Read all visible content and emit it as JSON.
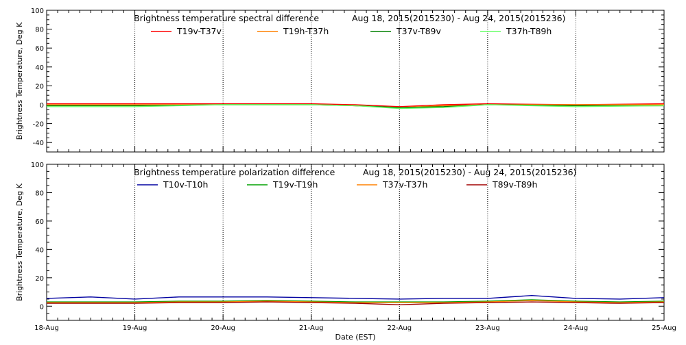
{
  "chart_data": [
    {
      "type": "line",
      "title": "Brightness temperature spectral difference",
      "date_range": "Aug 18, 2015(2015230) - Aug 24, 2015(2015236)",
      "ylabel": "Brightness Temperature, Deg K",
      "xlabel": "",
      "ylim": [
        -50,
        100
      ],
      "yticks": [
        -40,
        -20,
        0,
        20,
        40,
        60,
        80,
        100
      ],
      "xlim": [
        "2015-08-18",
        "2015-08-25"
      ],
      "x_tick_labels": [],
      "grid": "vertical dotted at day boundaries",
      "legend_position": "top",
      "series": [
        {
          "name": "T19v-T37v",
          "color": "#ff0000",
          "x": [
            "2015-08-18",
            "2015-08-19",
            "2015-08-20",
            "2015-08-21",
            "2015-08-21T12:00",
            "2015-08-22",
            "2015-08-22T12:00",
            "2015-08-23",
            "2015-08-24",
            "2015-08-25"
          ],
          "values": [
            1,
            1,
            1,
            1,
            0,
            -2,
            0,
            1,
            0,
            1
          ]
        },
        {
          "name": "T19h-T37h",
          "color": "#ff8000",
          "x": [
            "2015-08-18",
            "2015-08-19",
            "2015-08-20",
            "2015-08-21",
            "2015-08-21T12:00",
            "2015-08-22",
            "2015-08-22T12:00",
            "2015-08-23",
            "2015-08-24",
            "2015-08-25"
          ],
          "values": [
            0,
            0,
            0,
            0,
            -1,
            -3,
            -1,
            0,
            0,
            0
          ]
        },
        {
          "name": "T37v-T89v",
          "color": "#008000",
          "x": [
            "2015-08-18",
            "2015-08-19",
            "2015-08-20",
            "2015-08-21",
            "2015-08-21T12:00",
            "2015-08-22",
            "2015-08-22T12:00",
            "2015-08-23",
            "2015-08-24",
            "2015-08-25"
          ],
          "values": [
            -1,
            -1,
            0,
            0,
            -1,
            -3,
            -2,
            0,
            -1,
            -1
          ]
        },
        {
          "name": "T37h-T89h",
          "color": "#66ff66",
          "x": [
            "2015-08-18",
            "2015-08-19",
            "2015-08-20",
            "2015-08-21",
            "2015-08-21T12:00",
            "2015-08-22",
            "2015-08-22T12:00",
            "2015-08-23",
            "2015-08-24",
            "2015-08-25"
          ],
          "values": [
            -2,
            -2,
            0,
            0,
            -1,
            -4,
            -3,
            0,
            -2,
            -1
          ]
        }
      ]
    },
    {
      "type": "line",
      "title": "Brightness temperature polarization difference",
      "date_range": "Aug 18, 2015(2015230) - Aug 24, 2015(2015236)",
      "ylabel": "Brightness Temperature, Deg K",
      "xlabel": "Date (EST)",
      "ylim": [
        -10,
        100
      ],
      "yticks": [
        0,
        20,
        40,
        60,
        80,
        100
      ],
      "xlim": [
        "2015-08-18",
        "2015-08-25"
      ],
      "x_tick_labels": [
        "18-Aug",
        "19-Aug",
        "20-Aug",
        "21-Aug",
        "22-Aug",
        "23-Aug",
        "24-Aug",
        "25-Aug"
      ],
      "grid": "vertical dotted at day boundaries",
      "legend_position": "top",
      "series": [
        {
          "name": "T10v-T10h",
          "color": "#0000a0",
          "x": [
            "2015-08-18",
            "2015-08-18T12:00",
            "2015-08-19",
            "2015-08-19T12:00",
            "2015-08-20",
            "2015-08-20T12:00",
            "2015-08-21",
            "2015-08-21T12:00",
            "2015-08-22",
            "2015-08-22T12:00",
            "2015-08-23",
            "2015-08-23T12:00",
            "2015-08-24",
            "2015-08-24T12:00",
            "2015-08-25"
          ],
          "values": [
            5.5,
            6.5,
            5,
            6.5,
            6.5,
            6.5,
            6,
            5.5,
            5,
            5.5,
            5.5,
            7.5,
            5.5,
            5,
            6
          ]
        },
        {
          "name": "T19v-T19h",
          "color": "#00a000",
          "x": [
            "2015-08-18",
            "2015-08-18T12:00",
            "2015-08-19",
            "2015-08-19T12:00",
            "2015-08-20",
            "2015-08-20T12:00",
            "2015-08-21",
            "2015-08-21T12:00",
            "2015-08-22",
            "2015-08-22T12:00",
            "2015-08-23",
            "2015-08-23T12:00",
            "2015-08-24",
            "2015-08-24T12:00",
            "2015-08-25"
          ],
          "values": [
            3,
            3,
            3,
            3.5,
            3.5,
            4,
            3.5,
            3,
            3,
            3,
            3.5,
            4.5,
            3.5,
            3,
            3.5
          ]
        },
        {
          "name": "T37v-T37h",
          "color": "#ff8000",
          "x": [
            "2015-08-18",
            "2015-08-18T12:00",
            "2015-08-19",
            "2015-08-19T12:00",
            "2015-08-20",
            "2015-08-20T12:00",
            "2015-08-21",
            "2015-08-21T12:00",
            "2015-08-22",
            "2015-08-22T12:00",
            "2015-08-23",
            "2015-08-23T12:00",
            "2015-08-24",
            "2015-08-24T12:00",
            "2015-08-25"
          ],
          "values": [
            2.5,
            2.5,
            2.5,
            3,
            3,
            3.5,
            3,
            2.5,
            2.5,
            2.5,
            3,
            4,
            3,
            2.5,
            3
          ]
        },
        {
          "name": "T89v-T89h",
          "color": "#a00000",
          "x": [
            "2015-08-18",
            "2015-08-18T12:00",
            "2015-08-19",
            "2015-08-19T12:00",
            "2015-08-20",
            "2015-08-20T12:00",
            "2015-08-21",
            "2015-08-21T12:00",
            "2015-08-22",
            "2015-08-22T12:00",
            "2015-08-23",
            "2015-08-23T12:00",
            "2015-08-24",
            "2015-08-24T12:00",
            "2015-08-25"
          ],
          "values": [
            2,
            2,
            2,
            2.5,
            2.5,
            3,
            2.5,
            2,
            1,
            2,
            2.5,
            3,
            2.5,
            2,
            2.5
          ]
        }
      ]
    }
  ]
}
